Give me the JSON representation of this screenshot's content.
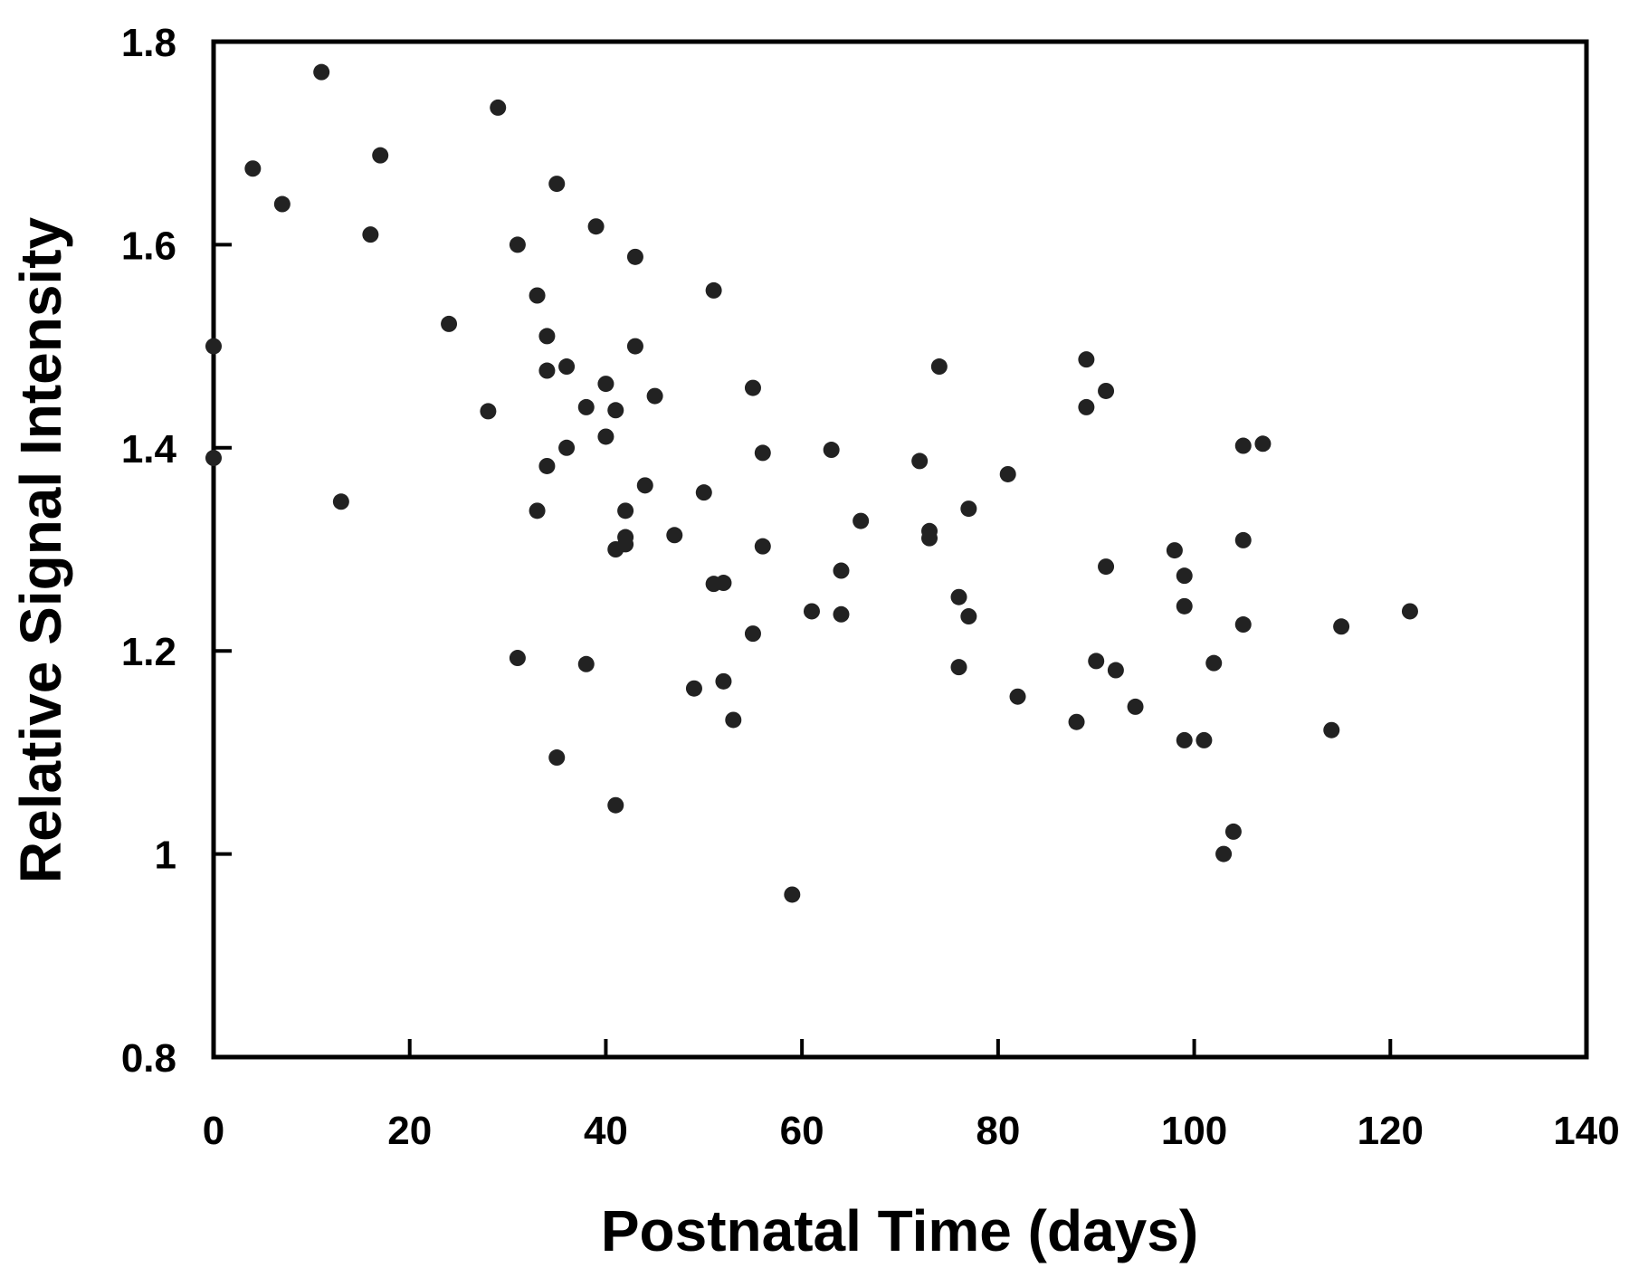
{
  "chart_data": {
    "type": "scatter",
    "title": "",
    "xlabel": "Postnatal Time (days)",
    "ylabel": "Relative Signal Intensity",
    "xlim": [
      0,
      140
    ],
    "ylim": [
      0.8,
      1.8
    ],
    "xticks": [
      0,
      20,
      40,
      60,
      80,
      100,
      120,
      140
    ],
    "yticks": [
      0.8,
      1,
      1.2,
      1.4,
      1.6,
      1.8
    ],
    "xtick_labels": [
      "0",
      "20",
      "40",
      "60",
      "80",
      "100",
      "120",
      "140"
    ],
    "ytick_labels": [
      "0.8",
      "1",
      "1.2",
      "1.4",
      "1.6",
      "1.8"
    ],
    "grid": false,
    "legend": "none",
    "marker_color": "#222222",
    "points": [
      [
        0,
        1.5
      ],
      [
        0,
        1.39
      ],
      [
        4,
        1.675
      ],
      [
        7,
        1.64
      ],
      [
        11,
        1.77
      ],
      [
        13,
        1.347
      ],
      [
        16,
        1.61
      ],
      [
        17,
        1.688
      ],
      [
        24,
        1.522
      ],
      [
        28,
        1.436
      ],
      [
        29,
        1.735
      ],
      [
        31,
        1.6
      ],
      [
        31,
        1.193
      ],
      [
        33,
        1.55
      ],
      [
        33,
        1.338
      ],
      [
        34,
        1.51
      ],
      [
        34,
        1.476
      ],
      [
        34,
        1.382
      ],
      [
        35,
        1.66
      ],
      [
        35,
        1.095
      ],
      [
        36,
        1.48
      ],
      [
        36,
        1.4
      ],
      [
        38,
        1.44
      ],
      [
        38,
        1.187
      ],
      [
        39,
        1.618
      ],
      [
        40,
        1.463
      ],
      [
        40,
        1.411
      ],
      [
        41,
        1.437
      ],
      [
        41,
        1.3
      ],
      [
        41,
        1.048
      ],
      [
        42,
        1.338
      ],
      [
        42,
        1.312
      ],
      [
        42,
        1.305
      ],
      [
        43,
        1.588
      ],
      [
        43,
        1.5
      ],
      [
        44,
        1.363
      ],
      [
        45,
        1.451
      ],
      [
        47,
        1.314
      ],
      [
        49,
        1.163
      ],
      [
        50,
        1.356
      ],
      [
        51,
        1.555
      ],
      [
        51,
        1.266
      ],
      [
        52,
        1.267
      ],
      [
        52,
        1.17
      ],
      [
        53,
        1.132
      ],
      [
        55,
        1.459
      ],
      [
        55,
        1.217
      ],
      [
        56,
        1.395
      ],
      [
        56,
        1.303
      ],
      [
        59,
        0.96
      ],
      [
        61,
        1.239
      ],
      [
        63,
        1.398
      ],
      [
        64,
        1.279
      ],
      [
        64,
        1.236
      ],
      [
        66,
        1.328
      ],
      [
        72,
        1.387
      ],
      [
        73,
        1.318
      ],
      [
        73,
        1.311
      ],
      [
        74,
        1.48
      ],
      [
        76,
        1.253
      ],
      [
        76,
        1.184
      ],
      [
        77,
        1.34
      ],
      [
        77,
        1.234
      ],
      [
        81,
        1.374
      ],
      [
        82,
        1.155
      ],
      [
        88,
        1.13
      ],
      [
        89,
        1.487
      ],
      [
        89,
        1.44
      ],
      [
        90,
        1.19
      ],
      [
        91,
        1.456
      ],
      [
        91,
        1.283
      ],
      [
        92,
        1.181
      ],
      [
        94,
        1.145
      ],
      [
        98,
        1.299
      ],
      [
        99,
        1.274
      ],
      [
        99,
        1.244
      ],
      [
        99,
        1.112
      ],
      [
        101,
        1.112
      ],
      [
        102,
        1.188
      ],
      [
        103,
        1.0
      ],
      [
        104,
        1.022
      ],
      [
        105,
        1.402
      ],
      [
        105,
        1.309
      ],
      [
        105,
        1.226
      ],
      [
        107,
        1.404
      ],
      [
        114,
        1.122
      ],
      [
        115,
        1.224
      ],
      [
        122,
        1.239
      ]
    ]
  }
}
